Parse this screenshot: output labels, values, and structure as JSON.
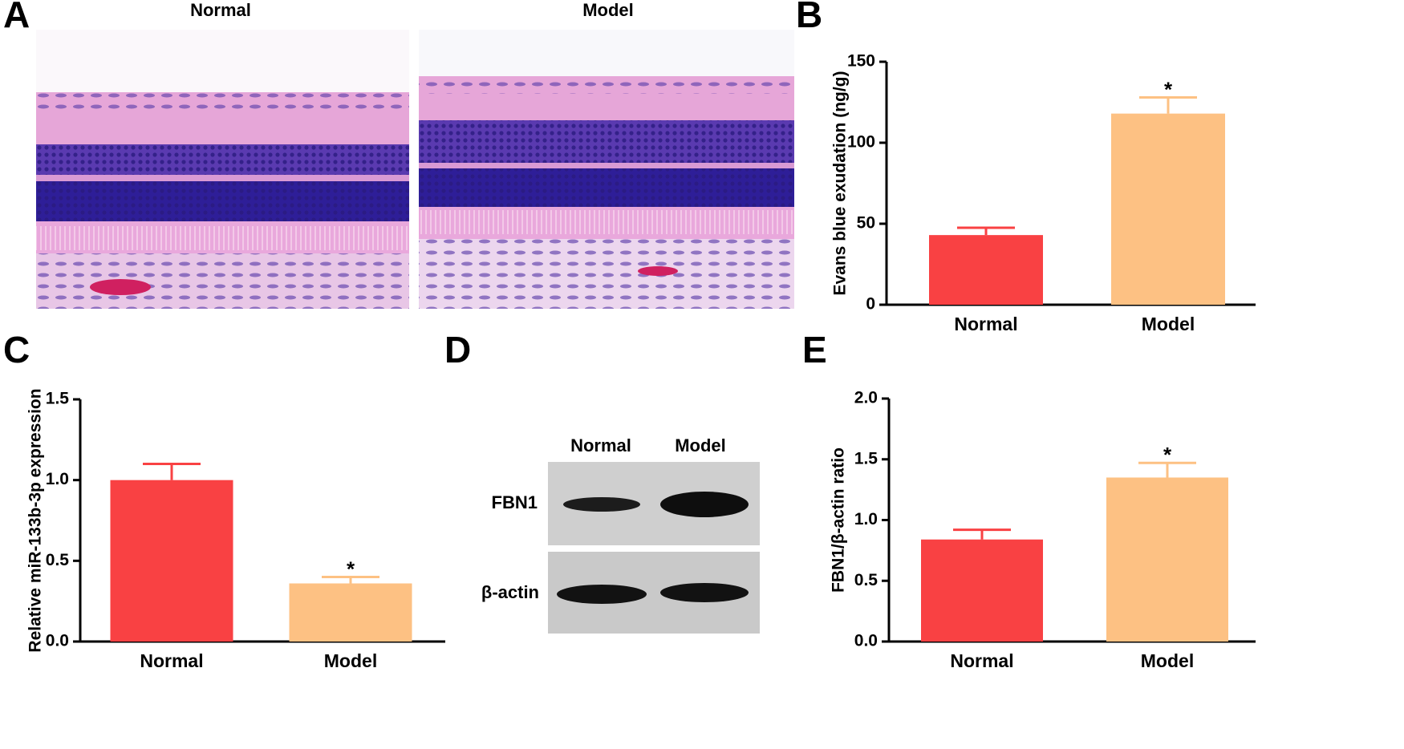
{
  "panel_labels": [
    "A",
    "B",
    "C",
    "D",
    "E"
  ],
  "histology": {
    "titles": [
      "Normal",
      "Model"
    ]
  },
  "blot": {
    "lanes": [
      "Normal",
      "Model"
    ],
    "rows": [
      "FBN1",
      "β-actin"
    ]
  },
  "chart_data": [
    {
      "type": "bar",
      "ylabel": "Evans blue exudation (ng/g)",
      "categories": [
        "Normal",
        "Model"
      ],
      "values": [
        43,
        118
      ],
      "errors": [
        4.5,
        10
      ],
      "colors": [
        "#f94143",
        "#fdc183"
      ],
      "significance": [
        null,
        "*"
      ],
      "ylim": [
        0,
        150
      ],
      "yticks": [
        0,
        50,
        100,
        150
      ]
    },
    {
      "type": "bar",
      "ylabel": "Relative miR-133b-3p expression",
      "categories": [
        "Normal",
        "Model"
      ],
      "values": [
        1.0,
        0.36
      ],
      "errors": [
        0.1,
        0.04
      ],
      "colors": [
        "#f94143",
        "#fdc183"
      ],
      "significance": [
        null,
        "*"
      ],
      "ylim": [
        0,
        1.5
      ],
      "yticks": [
        {
          "value": 0,
          "label": "0.0"
        },
        0.5,
        {
          "value": 1,
          "label": "1.0"
        },
        1.5
      ]
    },
    {
      "type": "bar",
      "ylabel": "FBN1/β-actin ratio",
      "categories": [
        "Normal",
        "Model"
      ],
      "values": [
        0.84,
        1.35
      ],
      "errors": [
        0.08,
        0.12
      ],
      "colors": [
        "#f94143",
        "#fdc183"
      ],
      "significance": [
        null,
        "*"
      ],
      "ylim": [
        0,
        2
      ],
      "yticks": [
        {
          "value": 0,
          "label": "0.0"
        },
        0.5,
        {
          "value": 1,
          "label": "1.0"
        },
        1.5,
        {
          "value": 2,
          "label": "2.0"
        }
      ]
    }
  ]
}
